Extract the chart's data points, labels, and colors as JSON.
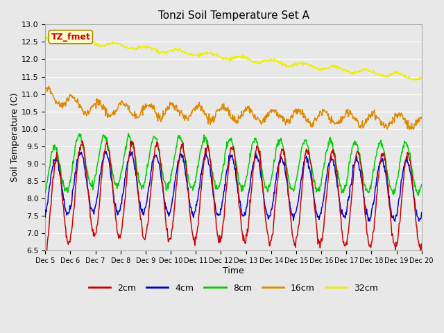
{
  "title": "Tonzi Soil Temperature Set A",
  "xlabel": "Time",
  "ylabel": "Soil Temperature (C)",
  "ylim": [
    6.5,
    13.0
  ],
  "colors": {
    "2cm": "#cc0000",
    "4cm": "#0000cc",
    "8cm": "#00cc00",
    "16cm": "#dd8800",
    "32cm": "#eeee00"
  },
  "annotation_text": "TZ_fmet",
  "annotation_color": "#cc0000",
  "annotation_bg": "#ffffcc",
  "annotation_edge": "#aa8800",
  "bg_color": "#e8e8e8",
  "n_points": 720,
  "title_fontsize": 11,
  "axis_fontsize": 9,
  "tick_fontsize": 8
}
